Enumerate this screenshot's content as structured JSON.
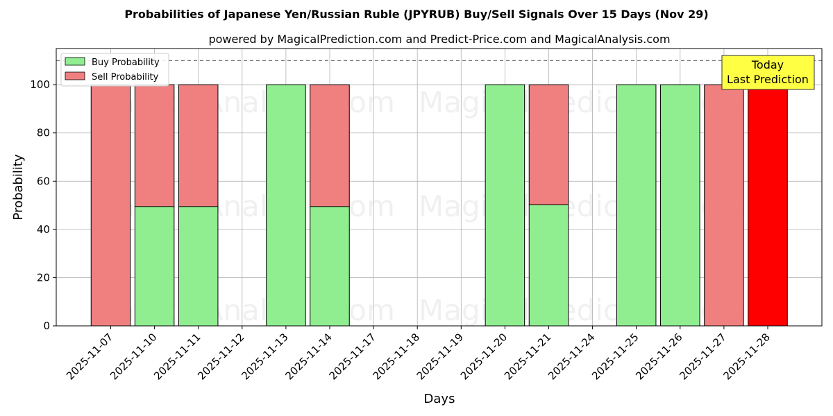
{
  "chart_data": {
    "type": "bar",
    "title": "Probabilities of Japanese Yen/Russian Ruble (JPYRUB) Buy/Sell Signals Over 15 Days (Nov 29)",
    "subtitle": "powered by MagicalPrediction.com and Predict-Price.com and MagicalAnalysis.com",
    "xlabel": "Days",
    "ylabel": "Probability",
    "ylim": [
      0,
      115
    ],
    "yticks": [
      0,
      20,
      40,
      60,
      80,
      100
    ],
    "reference_line": 110,
    "grid": true,
    "legend_placement": "top-left",
    "categories": [
      "2025-11-07",
      "2025-11-10",
      "2025-11-11",
      "2025-11-12",
      "2025-11-13",
      "2025-11-14",
      "2025-11-17",
      "2025-11-18",
      "2025-11-19",
      "2025-11-20",
      "2025-11-21",
      "2025-11-24",
      "2025-11-25",
      "2025-11-26",
      "2025-11-27",
      "2025-11-28"
    ],
    "series": [
      {
        "name": "Buy Probability",
        "color": "#90ee90",
        "values": [
          0,
          49.5,
          49.5,
          null,
          100,
          49.5,
          null,
          null,
          null,
          100,
          50.2,
          null,
          100,
          100,
          0,
          0
        ]
      },
      {
        "name": "Sell Probability",
        "color": "#f08080",
        "values": [
          100,
          50.5,
          50.5,
          null,
          0,
          50.5,
          null,
          null,
          null,
          0,
          49.8,
          null,
          0,
          0,
          100,
          100
        ]
      }
    ],
    "highlight": {
      "category": "2025-11-28",
      "color": "#ff0000"
    },
    "annotation": {
      "lines": [
        "Today",
        "Last Prediction"
      ],
      "color": "#ffff44"
    },
    "watermarks": [
      "MagicalAnalysis.com",
      "MagicalPrediction.com"
    ]
  }
}
